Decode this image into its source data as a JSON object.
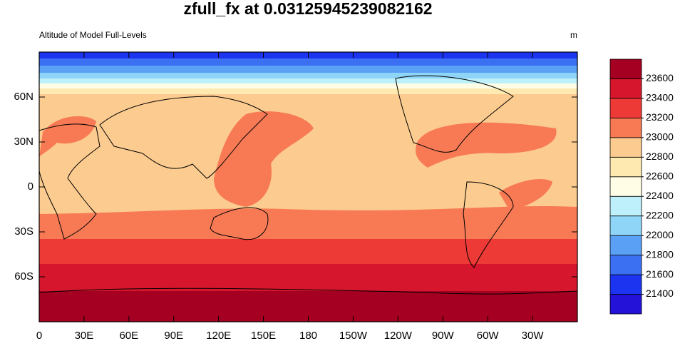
{
  "chart_data": {
    "type": "contour-map",
    "title": "zfull_fx at 0.03125945239082162",
    "subtitle_left": "Altitude of Model Full-Levels",
    "subtitle_right": "m",
    "xlim": [
      0,
      360
    ],
    "ylim": [
      -90,
      90
    ],
    "xticks": [
      0,
      {
        "value": 30,
        "label": "30E"
      },
      {
        "value": 60,
        "label": "60E"
      },
      {
        "value": 90,
        "label": "90E"
      },
      {
        "value": 120,
        "label": "120E"
      },
      {
        "value": 150,
        "label": "150E"
      },
      180,
      {
        "value": 210,
        "label": "150W"
      },
      {
        "value": 240,
        "label": "120W"
      },
      {
        "value": 270,
        "label": "90W"
      },
      {
        "value": 300,
        "label": "60W"
      },
      {
        "value": 330,
        "label": "30W"
      }
    ],
    "yticks": [
      {
        "value": 60,
        "label": "60N"
      },
      {
        "value": 30,
        "label": "30N"
      },
      0,
      {
        "value": -30,
        "label": "30S"
      },
      {
        "value": -60,
        "label": "60S"
      }
    ],
    "colorbar": {
      "levels": [
        21400,
        21600,
        21800,
        22000,
        22200,
        22400,
        22600,
        22800,
        23000,
        23200,
        23400,
        23600
      ],
      "colors": [
        "#2412d9",
        "#1c34ef",
        "#3b70f2",
        "#5aa0f5",
        "#8fd5f8",
        "#bdf0fb",
        "#fffde6",
        "#feeab0",
        "#fccb8f",
        "#f77a55",
        "#ee3a37",
        "#d5162c",
        "#a50021"
      ]
    }
  }
}
